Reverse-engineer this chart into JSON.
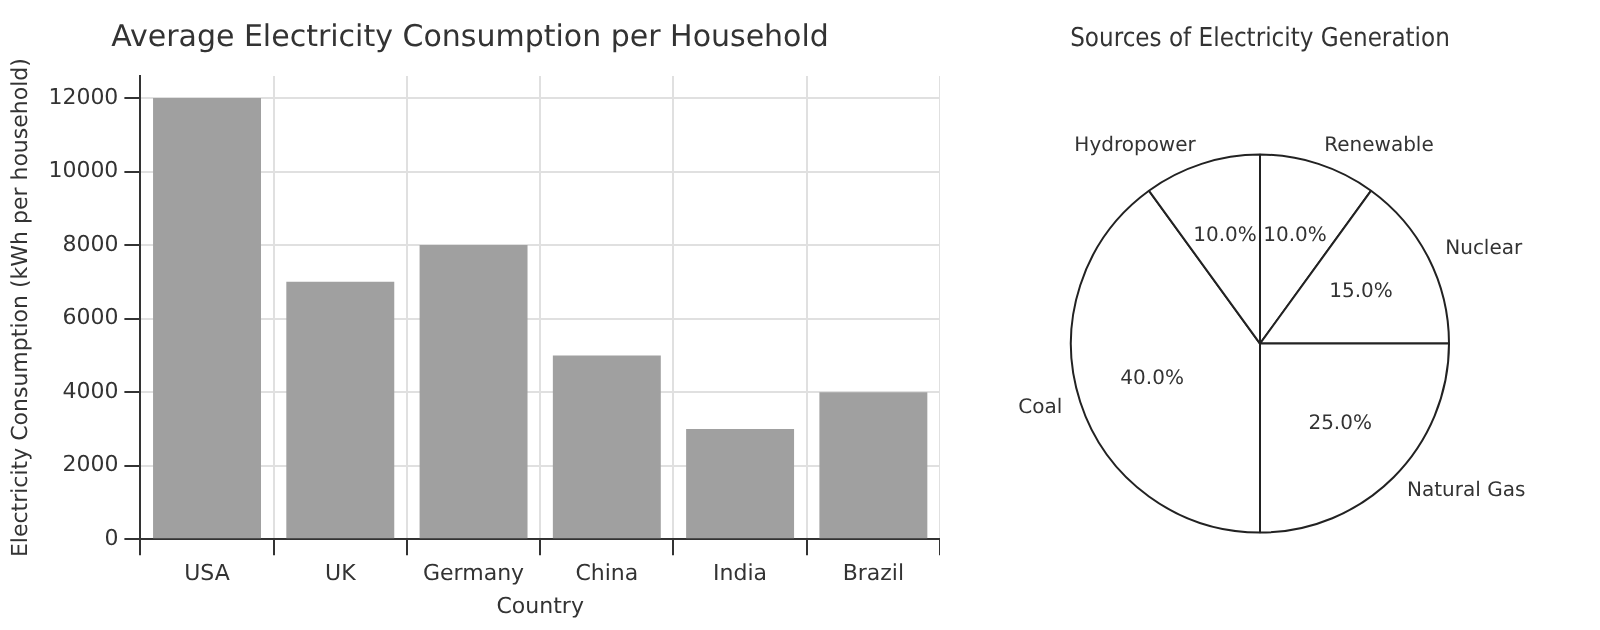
{
  "chart_data": [
    {
      "type": "bar",
      "title": "Average Electricity Consumption per Household",
      "xlabel": "Country",
      "ylabel": "Electricity Consumption (kWh per household)",
      "categories": [
        "USA",
        "UK",
        "Germany",
        "China",
        "India",
        "Brazil"
      ],
      "values": [
        12000,
        7000,
        8000,
        5000,
        3000,
        4000
      ],
      "color": "#a0a0a0",
      "ylim": [
        0,
        12600
      ],
      "yticks": [
        0,
        2000,
        4000,
        6000,
        8000,
        10000,
        12000
      ],
      "grid": true
    },
    {
      "type": "pie",
      "title": "Sources of Electricity Generation",
      "categories": [
        "Renewable",
        "Nuclear",
        "Natural Gas",
        "Coal",
        "Hydropower"
      ],
      "values": [
        10,
        15,
        25,
        40,
        10
      ],
      "value_labels": [
        "10.0%",
        "15.0%",
        "25.0%",
        "40.0%",
        "10.0%"
      ],
      "colors": [
        "#ffffff",
        "#ffffff",
        "#ffffff",
        "#ffffff",
        "#ffffff"
      ]
    }
  ]
}
